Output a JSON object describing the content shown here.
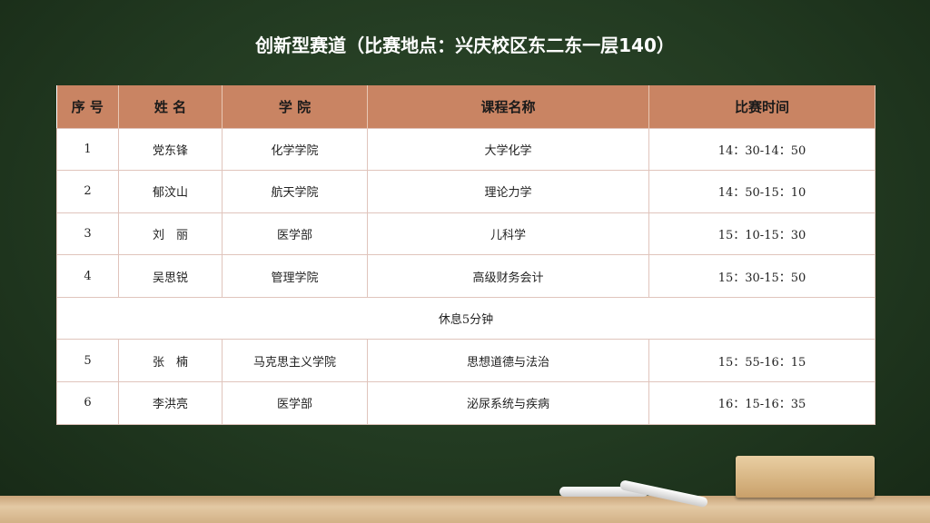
{
  "title": "创新型赛道（比赛地点：兴庆校区东二东一层140）",
  "headers": [
    "序 号",
    "姓 名",
    "学 院",
    "课程名称",
    "比赛时间"
  ],
  "rows": [
    [
      "1",
      "党东锋",
      "化学学院",
      "大学化学",
      "14：30-14：50"
    ],
    [
      "2",
      "郁汶山",
      "航天学院",
      "理论力学",
      "14：50-15：10"
    ],
    [
      "3",
      "刘　丽",
      "医学部",
      "儿科学",
      "15：10-15：30"
    ],
    [
      "4",
      "吴思锐",
      "管理学院",
      "高级财务会计",
      "15：30-15：50"
    ],
    [
      "5",
      "张　楠",
      "马克思主义学院",
      "思想道德与法治",
      "15：55-16：15"
    ],
    [
      "6",
      "李洪亮",
      "医学部",
      "泌尿系统与疾病",
      "16：15-16：35"
    ]
  ],
  "break_text": "休息5分钟",
  "colors": {
    "header": "#c98463",
    "board": "#223a21"
  }
}
